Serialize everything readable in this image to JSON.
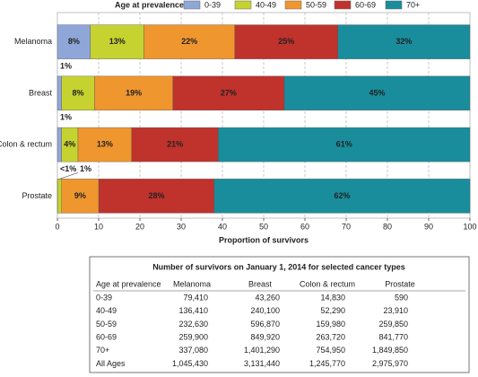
{
  "chart_data": {
    "type": "stacked-barh",
    "legend_title": "Age at prevalence",
    "categories": [
      "Melanoma",
      "Breast",
      "Colon & rectum",
      "Prostate"
    ],
    "series": [
      {
        "name": "0-39",
        "color": "#8fa7d8",
        "values": [
          8,
          1,
          1,
          0.02
        ],
        "value_labels": [
          "8%",
          "1%",
          "1%",
          "<1%"
        ]
      },
      {
        "name": "40-49",
        "color": "#c6d22f",
        "values": [
          13,
          8,
          4,
          1
        ],
        "value_labels": [
          "13%",
          "8%",
          "4%",
          "1%"
        ]
      },
      {
        "name": "50-59",
        "color": "#f0962e",
        "values": [
          22,
          19,
          13,
          9
        ],
        "value_labels": [
          "22%",
          "19%",
          "13%",
          "9%"
        ]
      },
      {
        "name": "60-69",
        "color": "#c0322c",
        "values": [
          25,
          27,
          21,
          28
        ],
        "value_labels": [
          "25%",
          "27%",
          "21%",
          "28%"
        ]
      },
      {
        "name": "70+",
        "color": "#198d9c",
        "values": [
          32,
          45,
          61,
          62
        ],
        "value_labels": [
          "32%",
          "45%",
          "61%",
          "62%"
        ]
      }
    ],
    "xlim": [
      0,
      100
    ],
    "xticks": [
      0,
      10,
      20,
      30,
      40,
      50,
      60,
      70,
      80,
      90,
      100
    ],
    "xlabel": "Proportion of survivors",
    "grid": true
  },
  "table": {
    "title": "Number of survivors on January 1, 2014 for selected cancer types",
    "columns": [
      "Age at prevalence",
      "Melanoma",
      "Breast",
      "Colon & rectum",
      "Prostate"
    ],
    "rows": [
      [
        "0-39",
        "79,410",
        "43,260",
        "14,830",
        "590"
      ],
      [
        "40-49",
        "136,410",
        "240,100",
        "52,290",
        "23,910"
      ],
      [
        "50-59",
        "232,630",
        "596,870",
        "159,980",
        "259,850"
      ],
      [
        "60-69",
        "259,900",
        "849,920",
        "263,720",
        "841,770"
      ],
      [
        "70+",
        "337,080",
        "1,401,290",
        "754,950",
        "1,849,850"
      ],
      [
        "All Ages",
        "1,045,430",
        "3,131,440",
        "1,245,770",
        "2,975,970"
      ]
    ]
  }
}
